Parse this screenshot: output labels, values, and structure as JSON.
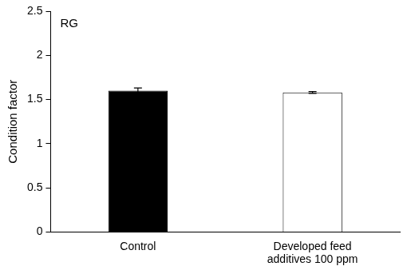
{
  "chart_data": {
    "type": "bar",
    "annotation": "RG",
    "y_label": "Condition factor",
    "categories": [
      "Control",
      "Developed feed additives 100 ppm"
    ],
    "values": [
      1.6,
      1.58
    ],
    "errors": [
      0.03,
      0.01
    ],
    "colors": [
      "#000000",
      "#ffffff"
    ],
    "ylim": [
      0,
      2.5
    ],
    "yticks": [
      0,
      0.5,
      1,
      1.5,
      2,
      2.5
    ],
    "grid": false
  }
}
